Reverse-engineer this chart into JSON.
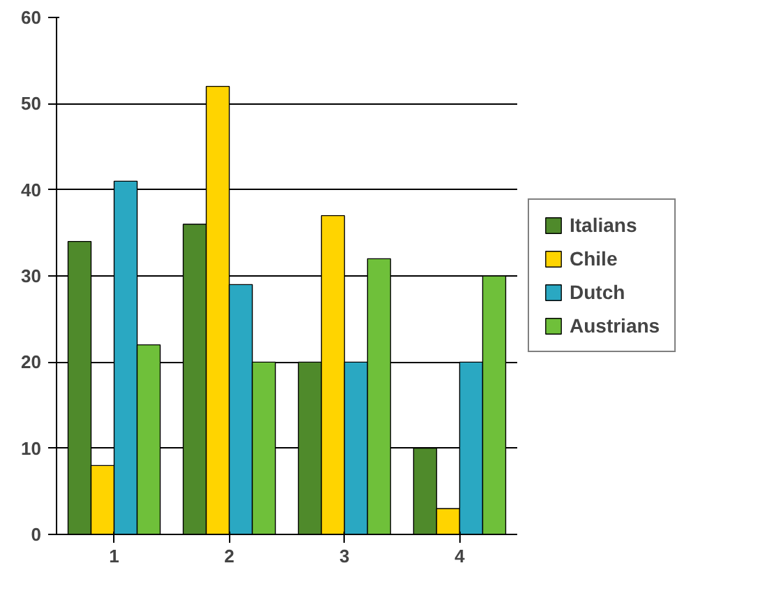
{
  "chart_data": {
    "type": "bar",
    "categories": [
      "1",
      "2",
      "3",
      "4"
    ],
    "series": [
      {
        "name": "Italians",
        "color": "#4f8a2b",
        "values": [
          34,
          36,
          20,
          10
        ]
      },
      {
        "name": "Chile",
        "color": "#ffd400",
        "values": [
          8,
          52,
          37,
          3
        ]
      },
      {
        "name": "Dutch",
        "color": "#2aa8c2",
        "values": [
          41,
          29,
          20,
          20
        ]
      },
      {
        "name": "Austrians",
        "color": "#6fc03a",
        "values": [
          22,
          20,
          32,
          30
        ]
      }
    ],
    "ylim": [
      0,
      60
    ],
    "yticks": [
      0,
      10,
      20,
      30,
      40,
      50,
      60
    ],
    "grid": "y",
    "legend": "right"
  }
}
